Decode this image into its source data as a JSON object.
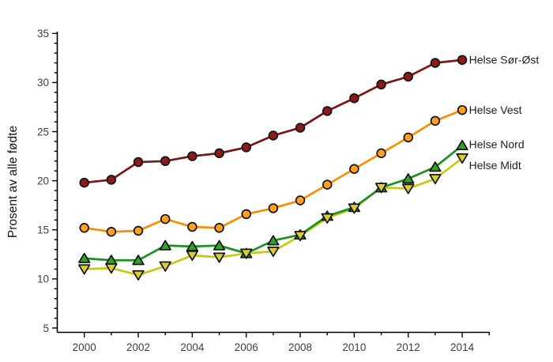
{
  "figure": {
    "background": "#ffffff"
  },
  "chart_data": {
    "type": "line",
    "title": "",
    "xlabel": "",
    "ylabel": "Prosent av alle fødte",
    "x": [
      2000,
      2001,
      2002,
      2003,
      2004,
      2005,
      2006,
      2007,
      2008,
      2009,
      2010,
      2011,
      2012,
      2013,
      2014
    ],
    "xlim": [
      1999,
      2015
    ],
    "ylim": [
      5,
      35
    ],
    "x_major_ticks": [
      2000,
      2002,
      2004,
      2006,
      2008,
      2010,
      2012,
      2014
    ],
    "x_minor_tick_step": 1,
    "y_major_ticks": [
      5,
      10,
      15,
      20,
      25,
      30,
      35
    ],
    "y_minor_tick_step": 1,
    "grid": false,
    "legend_position": "labels-at-line-ends-right",
    "series": [
      {
        "name": "Helse Sør-Øst",
        "marker": "circle",
        "line_color": "#7A1416",
        "fill_color": "#8B1A1A",
        "values": [
          19.8,
          20.1,
          21.9,
          22.0,
          22.5,
          22.8,
          23.4,
          24.6,
          25.4,
          27.1,
          28.4,
          29.8,
          30.6,
          32.0,
          32.3
        ],
        "label_dy": 0
      },
      {
        "name": "Helse Vest",
        "marker": "circle",
        "line_color": "#FB8C00",
        "fill_color": "#FFA024",
        "values": [
          15.2,
          14.8,
          14.9,
          16.1,
          15.3,
          15.2,
          16.6,
          17.2,
          18.0,
          19.6,
          21.2,
          22.8,
          24.4,
          26.1,
          27.2
        ],
        "label_dy": 0
      },
      {
        "name": "Helse Nord",
        "marker": "triangle-up",
        "line_color": "#1B9121",
        "fill_color": "#33A02C",
        "values": [
          12.1,
          11.9,
          11.9,
          13.4,
          13.3,
          13.4,
          12.6,
          13.9,
          14.5,
          16.4,
          17.3,
          19.3,
          20.2,
          21.4,
          23.6
        ],
        "label_dy": -1
      },
      {
        "name": "Helse Midt",
        "marker": "triangle-down",
        "line_color": "#C6C913",
        "fill_color": "#D9CE33",
        "values": [
          11.0,
          11.1,
          10.4,
          11.3,
          12.4,
          12.2,
          12.6,
          12.8,
          14.4,
          16.2,
          17.2,
          19.3,
          19.2,
          20.2,
          22.3
        ],
        "label_dy": 9
      }
    ],
    "axis_color": "#000000",
    "tick_label_color": "#404040",
    "series_label_color": "#1f1f1f"
  }
}
